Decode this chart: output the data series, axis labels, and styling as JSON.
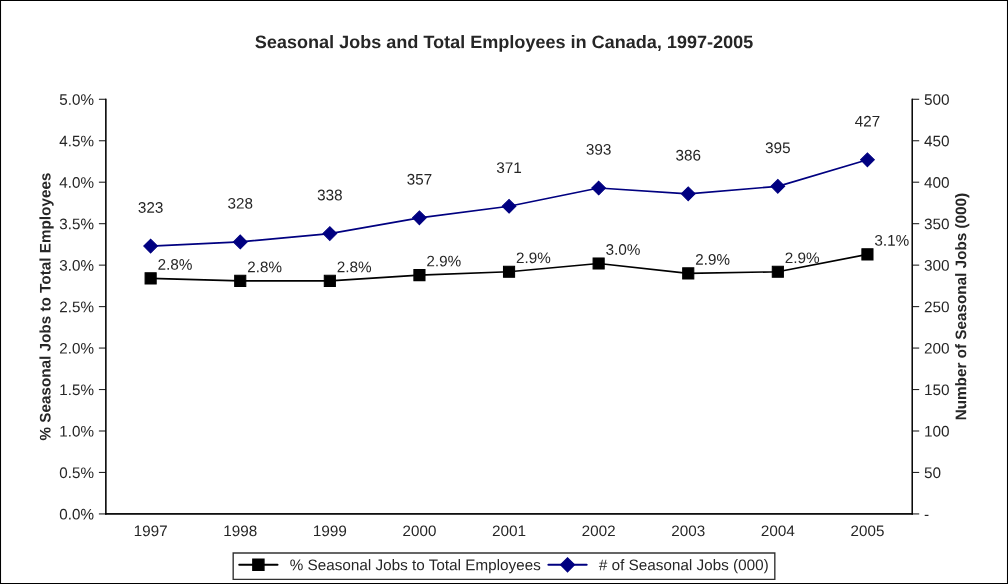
{
  "chart_data": {
    "type": "line",
    "title": "Seasonal Jobs and Total Employees in Canada, 1997-2005",
    "ylabel": "% Seasonal Jobs to Total Employees",
    "y2label": "Number of Seasonal Jobs (000)",
    "categories": [
      "1997",
      "1998",
      "1999",
      "2000",
      "2001",
      "2002",
      "2003",
      "2004",
      "2005"
    ],
    "series": [
      {
        "name": "% Seasonal Jobs to Total Employees",
        "color": "#000000",
        "marker": "square",
        "values": [
          2.84,
          2.81,
          2.81,
          2.88,
          2.92,
          3.02,
          2.9,
          2.92,
          3.13
        ],
        "value_labels": [
          "2.8%",
          "2.8%",
          "2.8%",
          "2.9%",
          "2.9%",
          "3.0%",
          "2.9%",
          "2.9%",
          "3.1%"
        ]
      },
      {
        "name": "# of Seasonal Jobs (000)",
        "color": "#000080",
        "marker": "diamond",
        "axis": "y2",
        "values": [
          323,
          328,
          338,
          357,
          371,
          393,
          386,
          395,
          427
        ],
        "data_labels": true
      }
    ],
    "ylim": [
      0,
      5
    ],
    "yticks": [
      {
        "value": 0,
        "label": "0.0%"
      },
      {
        "value": 0.5,
        "label": "0.5%"
      },
      {
        "value": 1,
        "label": "1.0%"
      },
      {
        "value": 1.5,
        "label": "1.5%"
      },
      {
        "value": 2,
        "label": "2.0%"
      },
      {
        "value": 2.5,
        "label": "2.5%"
      },
      {
        "value": 3,
        "label": "3.0%"
      },
      {
        "value": 3.5,
        "label": "3.5%"
      },
      {
        "value": 4,
        "label": "4.0%"
      },
      {
        "value": 4.5,
        "label": "4.5%"
      },
      {
        "value": 5,
        "label": "5.0%"
      }
    ],
    "y2lim": [
      0,
      500
    ],
    "y2ticks": [
      {
        "value": 0,
        "label": "-"
      },
      50,
      100,
      150,
      200,
      250,
      300,
      350,
      400,
      450,
      500
    ],
    "grid": false,
    "legend": "bottom",
    "line_style": "solid"
  }
}
